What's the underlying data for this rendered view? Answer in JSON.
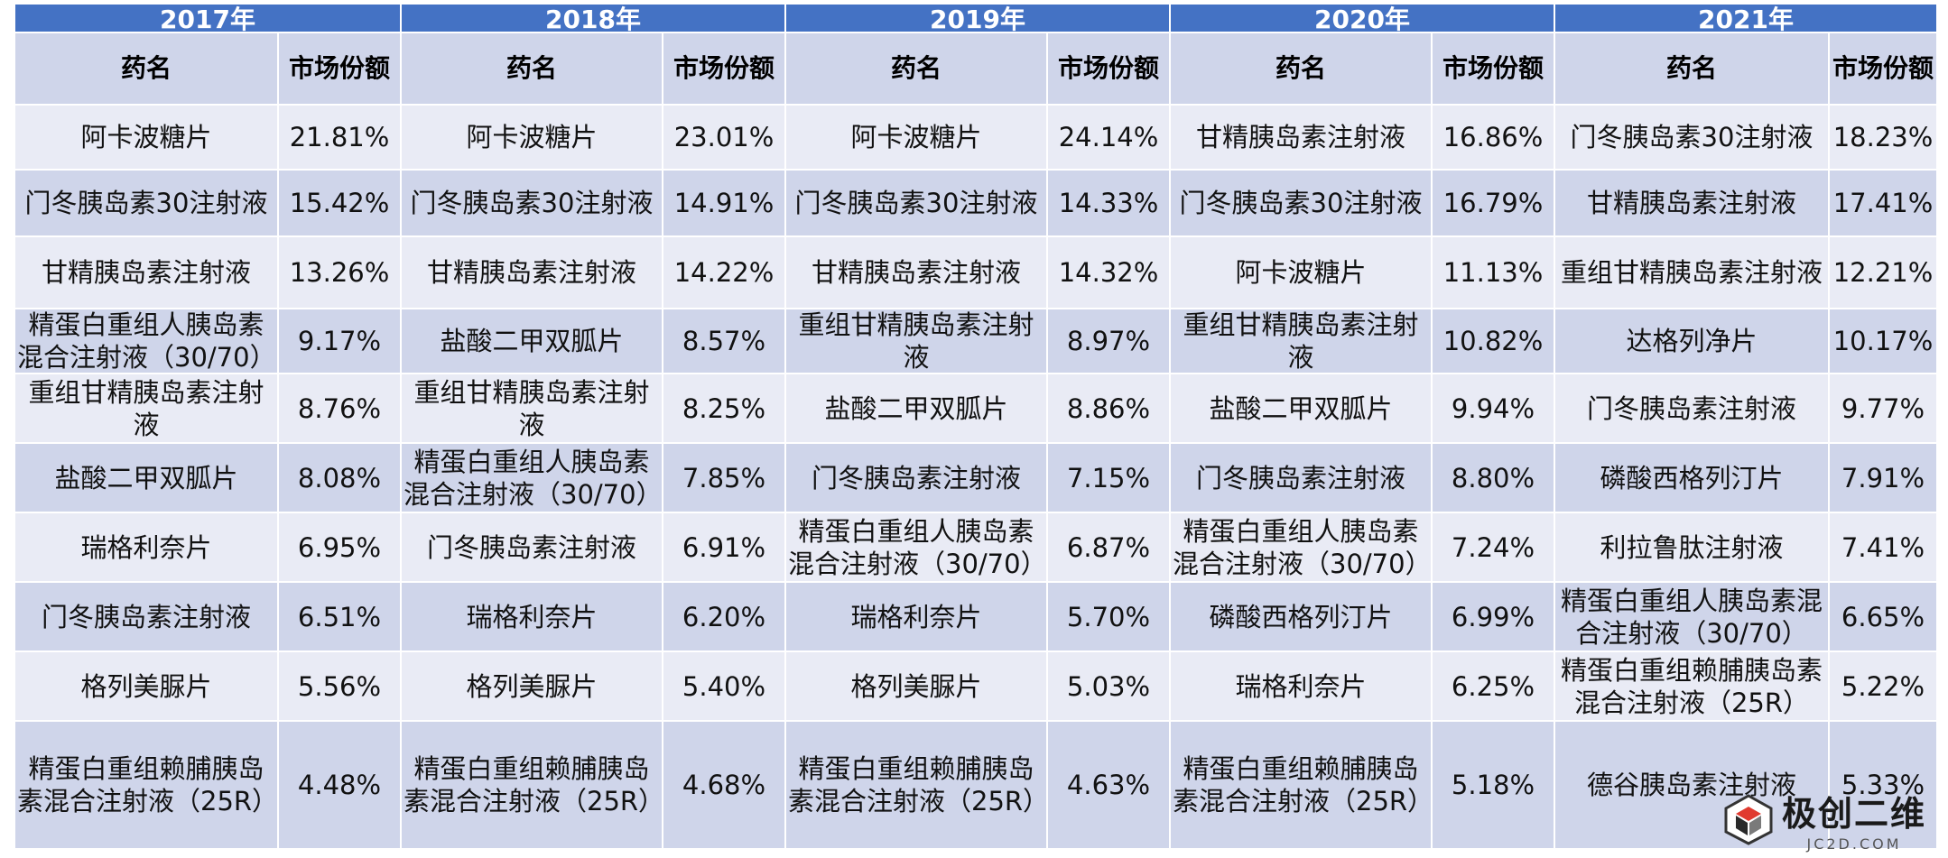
{
  "years": [
    "2017年",
    "2018年",
    "2019年",
    "2020年",
    "2021年"
  ],
  "headers": {
    "name": "药名",
    "share": "市场份额"
  },
  "rows": [
    [
      [
        "阿卡波糖片",
        "21.81%"
      ],
      [
        "阿卡波糖片",
        "23.01%"
      ],
      [
        "阿卡波糖片",
        "24.14%"
      ],
      [
        "甘精胰岛素注射液",
        "16.86%"
      ],
      [
        "门冬胰岛素30注射液",
        "18.23%"
      ]
    ],
    [
      [
        "门冬胰岛素30注射液",
        "15.42%"
      ],
      [
        "门冬胰岛素30注射液",
        "14.91%"
      ],
      [
        "门冬胰岛素30注射液",
        "14.33%"
      ],
      [
        "门冬胰岛素30注射液",
        "16.79%"
      ],
      [
        "甘精胰岛素注射液",
        "17.41%"
      ]
    ],
    [
      [
        "甘精胰岛素注射液",
        "13.26%"
      ],
      [
        "甘精胰岛素注射液",
        "14.22%"
      ],
      [
        "甘精胰岛素注射液",
        "14.32%"
      ],
      [
        "阿卡波糖片",
        "11.13%"
      ],
      [
        "重组甘精胰岛素注射液",
        "12.21%"
      ]
    ],
    [
      [
        "精蛋白重组人胰岛素混合注射液（30/70）",
        "9.17%"
      ],
      [
        "盐酸二甲双胍片",
        "8.57%"
      ],
      [
        "重组甘精胰岛素注射液",
        "8.97%"
      ],
      [
        "重组甘精胰岛素注射液",
        "10.82%"
      ],
      [
        "达格列净片",
        "10.17%"
      ]
    ],
    [
      [
        "重组甘精胰岛素注射液",
        "8.76%"
      ],
      [
        "重组甘精胰岛素注射液",
        "8.25%"
      ],
      [
        "盐酸二甲双胍片",
        "8.86%"
      ],
      [
        "盐酸二甲双胍片",
        "9.94%"
      ],
      [
        "门冬胰岛素注射液",
        "9.77%"
      ]
    ],
    [
      [
        "盐酸二甲双胍片",
        "8.08%"
      ],
      [
        "精蛋白重组人胰岛素混合注射液（30/70）",
        "7.85%"
      ],
      [
        "门冬胰岛素注射液",
        "7.15%"
      ],
      [
        "门冬胰岛素注射液",
        "8.80%"
      ],
      [
        "磷酸西格列汀片",
        "7.91%"
      ]
    ],
    [
      [
        "瑞格利奈片",
        "6.95%"
      ],
      [
        "门冬胰岛素注射液",
        "6.91%"
      ],
      [
        "精蛋白重组人胰岛素混合注射液（30/70）",
        "6.87%"
      ],
      [
        "精蛋白重组人胰岛素混合注射液（30/70）",
        "7.24%"
      ],
      [
        "利拉鲁肽注射液",
        "7.41%"
      ]
    ],
    [
      [
        "门冬胰岛素注射液",
        "6.51%"
      ],
      [
        "瑞格利奈片",
        "6.20%"
      ],
      [
        "瑞格利奈片",
        "5.70%"
      ],
      [
        "磷酸西格列汀片",
        "6.99%"
      ],
      [
        "精蛋白重组人胰岛素混合注射液（30/70）",
        "6.65%"
      ]
    ],
    [
      [
        "格列美脲片",
        "5.56%"
      ],
      [
        "格列美脲片",
        "5.40%"
      ],
      [
        "格列美脲片",
        "5.03%"
      ],
      [
        "瑞格利奈片",
        "6.25%"
      ],
      [
        "精蛋白重组赖脯胰岛素混合注射液（25R）",
        "5.22%"
      ]
    ],
    [
      [
        "精蛋白重组赖脯胰岛素混合注射液（25R）",
        "4.48%"
      ],
      [
        "精蛋白重组赖脯胰岛素混合注射液（25R）",
        "4.68%"
      ],
      [
        "精蛋白重组赖脯胰岛素混合注射液（25R）",
        "4.63%"
      ],
      [
        "精蛋白重组赖脯胰岛素混合注射液（25R）",
        "5.18%"
      ],
      [
        "德谷胰岛素注射液",
        "5.33%"
      ]
    ]
  ],
  "watermark": {
    "main": "极创二维",
    "sub": "JC2D.COM"
  }
}
